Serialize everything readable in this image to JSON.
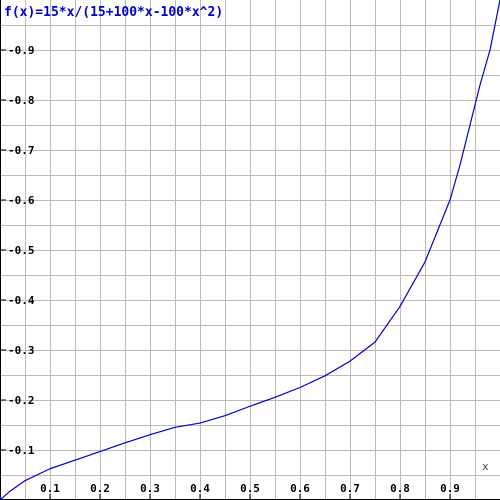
{
  "chart_data": {
    "type": "line",
    "title": "f(x)=15*x/(15+100*x-100*x^2)",
    "xlabel": "x",
    "ylabel": "",
    "xlim": [
      0,
      1
    ],
    "ylim": [
      0,
      1
    ],
    "grid": true,
    "x_ticks": [
      0.05,
      0.1,
      0.15,
      0.2,
      0.25,
      0.3,
      0.35,
      0.4,
      0.45,
      0.5,
      0.55,
      0.6,
      0.65,
      0.7,
      0.75,
      0.8,
      0.85,
      0.9,
      0.95
    ],
    "y_ticks": [
      0.05,
      0.1,
      0.15,
      0.2,
      0.25,
      0.3,
      0.35,
      0.4,
      0.45,
      0.5,
      0.55,
      0.6,
      0.65,
      0.7,
      0.75,
      0.8,
      0.85,
      0.9,
      0.95
    ],
    "x_tick_labels": [
      {
        "value": 0.1,
        "label": "0.1"
      },
      {
        "value": 0.2,
        "label": "0.2"
      },
      {
        "value": 0.3,
        "label": "0.3"
      },
      {
        "value": 0.4,
        "label": "0.4"
      },
      {
        "value": 0.5,
        "label": "0.5"
      },
      {
        "value": 0.6,
        "label": "0.6"
      },
      {
        "value": 0.7,
        "label": "0.7"
      },
      {
        "value": 0.8,
        "label": "0.8"
      },
      {
        "value": 0.9,
        "label": "0.9"
      }
    ],
    "y_tick_labels": [
      {
        "value": 0.1,
        "label": "0.1"
      },
      {
        "value": 0.2,
        "label": "0.2"
      },
      {
        "value": 0.3,
        "label": "0.3"
      },
      {
        "value": 0.4,
        "label": "0.4"
      },
      {
        "value": 0.5,
        "label": "0.5"
      },
      {
        "value": 0.6,
        "label": "0.6"
      },
      {
        "value": 0.7,
        "label": "0.7"
      },
      {
        "value": 0.8,
        "label": "0.8"
      },
      {
        "value": 0.9,
        "label": "0.9"
      }
    ],
    "series": [
      {
        "color": "#0000cc",
        "x": [
          0,
          0.02,
          0.05,
          0.1,
          0.15,
          0.2,
          0.25,
          0.3,
          0.35,
          0.4,
          0.45,
          0.5,
          0.55,
          0.6,
          0.65,
          0.7,
          0.75,
          0.8,
          0.85,
          0.9,
          0.92,
          0.94,
          0.96,
          0.98,
          1.0
        ],
        "y": [
          0,
          0.0176,
          0.0387,
          0.0625,
          0.0796,
          0.0968,
          0.1143,
          0.1306,
          0.1454,
          0.1539,
          0.1687,
          0.1875,
          0.2054,
          0.225,
          0.2484,
          0.2777,
          0.3158,
          0.3871,
          0.4762,
          0.6,
          0.67,
          0.75,
          0.83,
          0.9,
          1.0
        ]
      }
    ],
    "colors": {
      "grid": "#bbbbbb",
      "axis": "#000000",
      "tick_label": "#000000",
      "title": "#0000cc",
      "line": "#0000cc"
    }
  }
}
